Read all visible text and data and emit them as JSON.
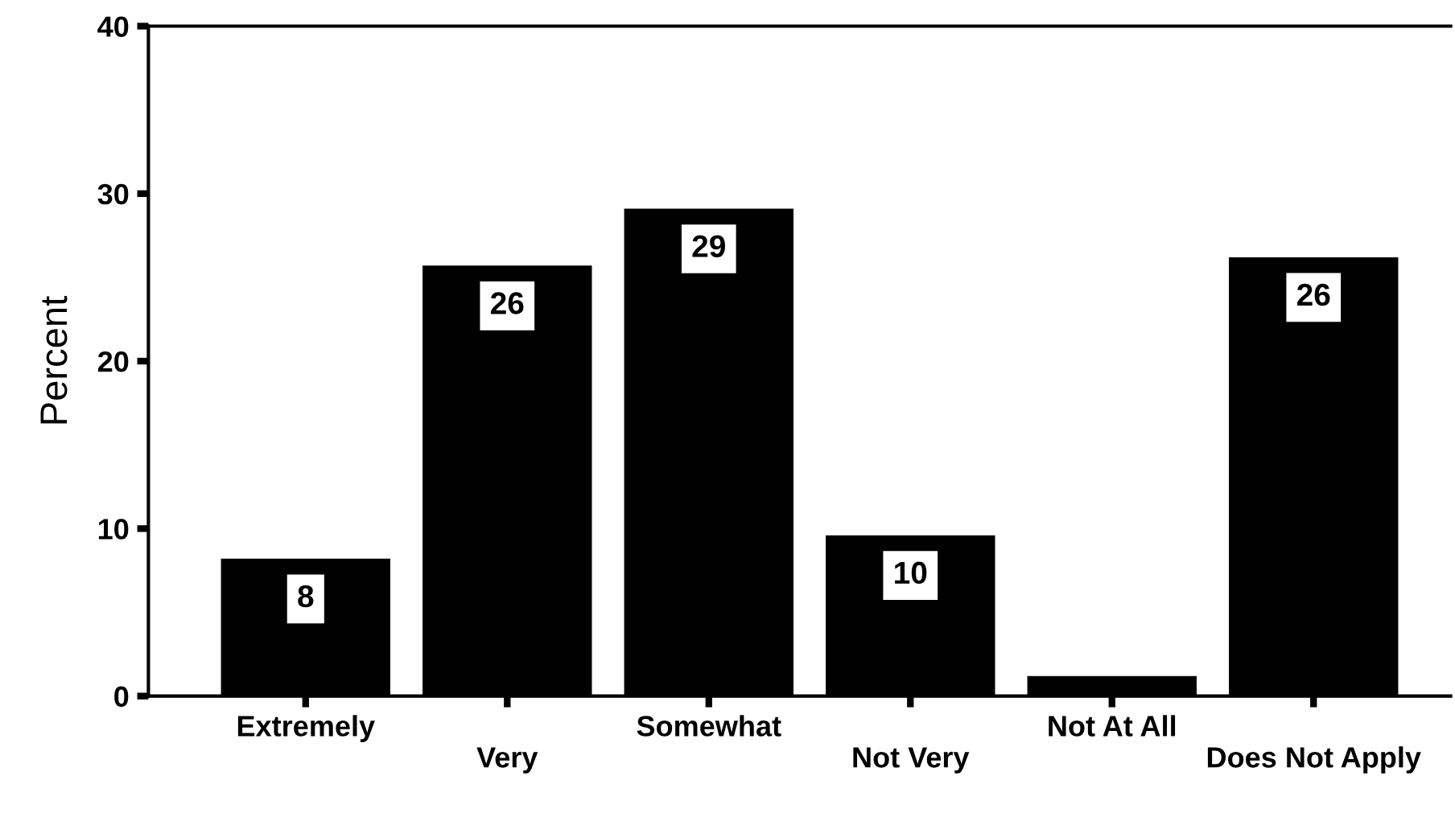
{
  "chart_data": {
    "type": "bar",
    "ylabel": "Percent",
    "categories": [
      "Extremely",
      "Very",
      "Somewhat",
      "Not Very",
      "Not At All",
      "Does Not Apply"
    ],
    "values": [
      8.2,
      25.7,
      29.1,
      9.6,
      1.2,
      26.2
    ],
    "value_labels": [
      "8",
      "26",
      "29",
      "10",
      null,
      "26"
    ],
    "color": "#000000",
    "ylim": [
      0,
      40
    ],
    "yticks": [
      0,
      10,
      20,
      30,
      40
    ],
    "grid": false,
    "legend": false
  }
}
